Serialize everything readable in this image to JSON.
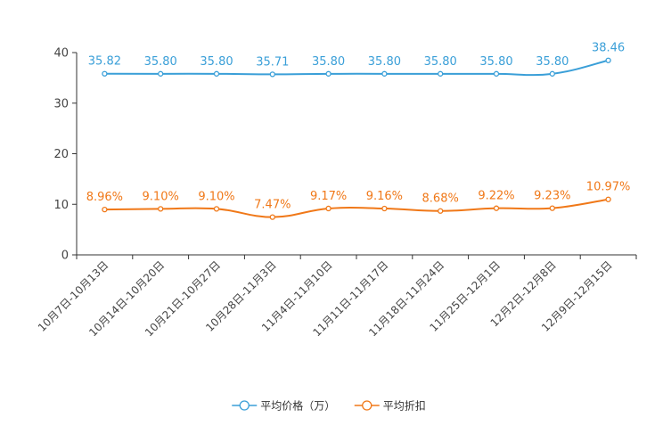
{
  "chart_data": {
    "type": "line",
    "categories": [
      "10月7日-10月13日",
      "10月14日-10月20日",
      "10月21日-10月27日",
      "10月28日-11月3日",
      "11月4日-11月10日",
      "11月11日-11月17日",
      "11月18日-11月24日",
      "11月25日-12月1日",
      "12月2日-12月8日",
      "12月9日-12月15日"
    ],
    "series": [
      {
        "name": "平均价格（万）",
        "color": "#3a9fd8",
        "values": [
          35.82,
          35.8,
          35.8,
          35.71,
          35.8,
          35.8,
          35.8,
          35.8,
          35.8,
          38.46
        ],
        "labels": [
          "35.82",
          "35.80",
          "35.80",
          "35.71",
          "35.80",
          "35.80",
          "35.80",
          "35.80",
          "35.80",
          "38.46"
        ]
      },
      {
        "name": "平均折扣",
        "color": "#f07818",
        "values": [
          8.96,
          9.1,
          9.1,
          7.47,
          9.17,
          9.16,
          8.68,
          9.22,
          9.23,
          10.97
        ],
        "labels": [
          "8.96%",
          "9.10%",
          "9.10%",
          "7.47%",
          "9.17%",
          "9.16%",
          "8.68%",
          "9.22%",
          "9.23%",
          "10.97%"
        ]
      }
    ],
    "ylim": [
      0,
      40
    ],
    "yticks": [
      "0",
      "10",
      "20",
      "30",
      "40"
    ],
    "legend_position": "bottom-center",
    "title": "",
    "xlabel": "",
    "ylabel": ""
  }
}
